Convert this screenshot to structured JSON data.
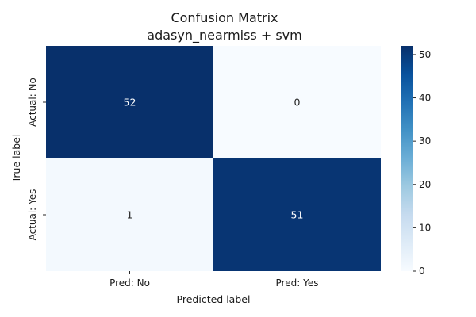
{
  "chart_data": {
    "type": "heatmap",
    "title": "Confusion Matrix",
    "subtitle": "adasyn_nearmiss + svm",
    "xlabel": "Predicted label",
    "ylabel": "True label",
    "x_categories": [
      "Pred: No",
      "Pred: Yes"
    ],
    "y_categories": [
      "Actual: No",
      "Actual: Yes"
    ],
    "values": [
      [
        52,
        0
      ],
      [
        1,
        51
      ]
    ],
    "colormap": "Blues",
    "color_low": "#f7fbff",
    "color_high": "#08306b",
    "colorbar": {
      "range": [
        0,
        52
      ],
      "ticks": [
        0,
        10,
        20,
        30,
        40,
        50
      ]
    },
    "legend": "colorbar-right",
    "grid": false
  }
}
